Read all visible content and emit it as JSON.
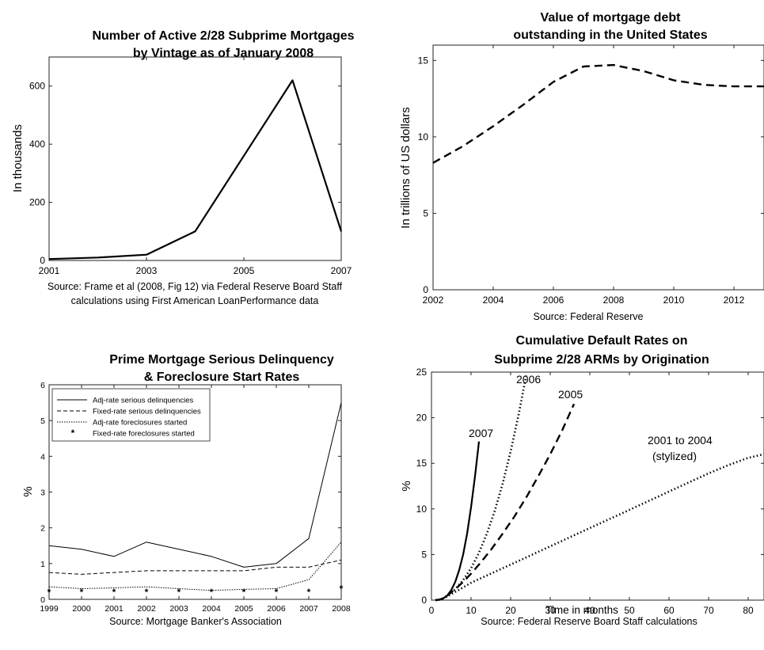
{
  "chart_data": [
    {
      "type": "line",
      "title": "Number of Active 2/28 Subprime Mortgages by Vintage as of January 2008",
      "title_lines": [
        "Number of Active 2/28 Subprime Mortgages",
        "by Vintage as of January 2008"
      ],
      "ylabel": "In thousands",
      "source": "Source: Frame et al (2008, Fig 12) via Federal Reserve Board Staff calculations using First American LoanPerformance data",
      "source_lines": [
        "Source: Frame et al (2008, Fig 12) via Federal Reserve Board Staff",
        "calculations using First American LoanPerformance data"
      ],
      "xlim": [
        2001,
        2007
      ],
      "ylim": [
        0,
        700
      ],
      "xticks": [
        2001,
        2003,
        2005,
        2007
      ],
      "yticks": [
        0,
        200,
        400,
        600
      ],
      "series": [
        {
          "x": [
            2001,
            2002,
            2003,
            2004,
            2005,
            2006,
            2007
          ],
          "values": [
            5,
            10,
            20,
            100,
            360,
            620,
            100
          ],
          "style": "solid"
        }
      ]
    },
    {
      "type": "line",
      "title": "Value of mortgage debt outstanding in the United States",
      "title_lines": [
        "Value of mortgage debt",
        "outstanding in the United States"
      ],
      "ylabel": "In trillions of US dollars",
      "source": "Source: Federal Reserve",
      "xlim": [
        2002,
        2013
      ],
      "ylim": [
        0,
        16
      ],
      "xticks": [
        2002,
        2004,
        2006,
        2008,
        2010,
        2012
      ],
      "yticks": [
        0,
        5,
        10,
        15
      ],
      "series": [
        {
          "x": [
            2002,
            2003,
            2004,
            2005,
            2006,
            2007,
            2008,
            2009,
            2010,
            2011,
            2012,
            2013
          ],
          "values": [
            8.3,
            9.4,
            10.7,
            12.1,
            13.6,
            14.6,
            14.7,
            14.3,
            13.7,
            13.4,
            13.3,
            13.3
          ],
          "style": "dashed"
        }
      ]
    },
    {
      "type": "line",
      "title": "Prime Mortgage Serious Delinquency & Foreclosure Start Rates",
      "title_lines": [
        "Prime Mortgage Serious Delinquency",
        "& Foreclosure Start Rates"
      ],
      "ylabel": "%",
      "source": "Source: Mortgage Banker's Association",
      "xlim": [
        1999,
        2008
      ],
      "ylim": [
        0,
        6
      ],
      "categories": [
        1999,
        2000,
        2001,
        2002,
        2003,
        2004,
        2005,
        2006,
        2007,
        2008
      ],
      "xticks": [
        1999,
        2000,
        2001,
        2002,
        2003,
        2004,
        2005,
        2006,
        2007,
        2008
      ],
      "yticks": [
        0,
        1,
        2,
        3,
        4,
        5,
        6
      ],
      "legend_position": "top-left",
      "series": [
        {
          "name": "Adj-rate serious delinquencies",
          "style": "solid",
          "values": [
            1.5,
            1.4,
            1.2,
            1.6,
            1.4,
            1.2,
            0.9,
            1.0,
            1.7,
            5.5
          ]
        },
        {
          "name": "Fixed-rate serious delinquencies",
          "style": "dashed",
          "values": [
            0.75,
            0.7,
            0.75,
            0.8,
            0.8,
            0.8,
            0.8,
            0.9,
            0.9,
            1.1
          ]
        },
        {
          "name": "Adj-rate foreclosures started",
          "style": "dotted",
          "values": [
            0.35,
            0.3,
            0.32,
            0.35,
            0.3,
            0.25,
            0.28,
            0.3,
            0.55,
            1.6
          ]
        },
        {
          "name": "Fixed-rate foreclosures started",
          "style": "star-markers",
          "values": [
            0.2,
            0.2,
            0.2,
            0.2,
            0.2,
            0.2,
            0.2,
            0.2,
            0.2,
            0.3
          ]
        }
      ]
    },
    {
      "type": "line",
      "title": "Cumulative Default Rates on Subprime 2/28 ARMs by Origination",
      "title_lines": [
        "Cumulative Default Rates on",
        "Subprime 2/28 ARMs by Origination"
      ],
      "xlabel": "Time in months",
      "ylabel": "%",
      "source": "Source: Federal Reserve Board Staff calculations",
      "xlim": [
        0,
        84
      ],
      "ylim": [
        0,
        25
      ],
      "xticks": [
        0,
        10,
        20,
        30,
        40,
        50,
        60,
        70,
        80
      ],
      "yticks": [
        0,
        5,
        10,
        15,
        20,
        25
      ],
      "series": [
        {
          "label": "2007",
          "style": "solid",
          "x": [
            1,
            2,
            3,
            4,
            5,
            6,
            7,
            8,
            9,
            10,
            11,
            12
          ],
          "values": [
            0,
            0.05,
            0.2,
            0.5,
            1.1,
            2.0,
            3.3,
            5.0,
            7.3,
            10.2,
            13.6,
            17.4
          ]
        },
        {
          "label": "2006",
          "style": "dotted",
          "x": [
            1,
            2,
            3,
            4,
            6,
            8,
            10,
            12,
            14,
            16,
            18,
            20,
            22,
            24
          ],
          "values": [
            0,
            0.05,
            0.2,
            0.5,
            1.2,
            2.2,
            3.5,
            5.2,
            7.3,
            9.8,
            12.8,
            16.3,
            20.3,
            24.8
          ]
        },
        {
          "label": "2005",
          "style": "dashed",
          "x": [
            1,
            2,
            3,
            4,
            6,
            8,
            10,
            12,
            15,
            18,
            21,
            24,
            27,
            30,
            33,
            36
          ],
          "values": [
            0,
            0.05,
            0.2,
            0.5,
            1.2,
            2.0,
            2.9,
            3.9,
            5.5,
            7.3,
            9.2,
            11.3,
            13.6,
            16.0,
            18.6,
            21.5
          ]
        },
        {
          "label": "2001 to 2004",
          "sublabel": "(stylized)",
          "style": "dotted",
          "x": [
            1,
            2,
            3,
            4,
            6,
            8,
            10,
            15,
            20,
            25,
            30,
            35,
            40,
            45,
            50,
            55,
            60,
            65,
            70,
            75,
            80,
            84
          ],
          "values": [
            0,
            0.05,
            0.2,
            0.4,
            0.9,
            1.4,
            1.9,
            2.9,
            3.9,
            4.9,
            5.9,
            6.9,
            7.9,
            8.9,
            9.9,
            10.9,
            11.9,
            12.9,
            13.9,
            14.8,
            15.6,
            16.0
          ]
        }
      ]
    }
  ]
}
